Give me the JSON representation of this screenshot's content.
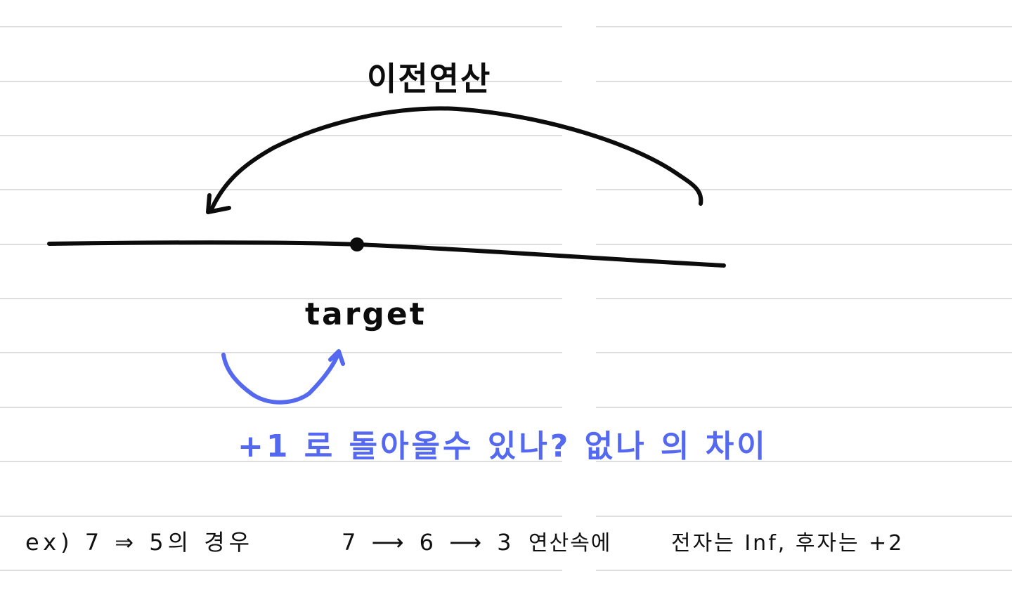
{
  "labels": {
    "previous_operation": "이전연산",
    "target": "target",
    "question": "+1 로 돌아올수 있나? 없나 의 차이",
    "example": {
      "prefix": "ex) 7 ⇒ 5의 경우",
      "sequence": "7 ⟶ 6 ⟶ 3",
      "middle": "연산속에",
      "suffix": "전자는 Inf, 후자는 +2"
    }
  },
  "colors": {
    "ink": "#0c0c0c",
    "blue_ink": "#5468f0",
    "rule_lines": "#dedede",
    "background": "#ffffff"
  }
}
